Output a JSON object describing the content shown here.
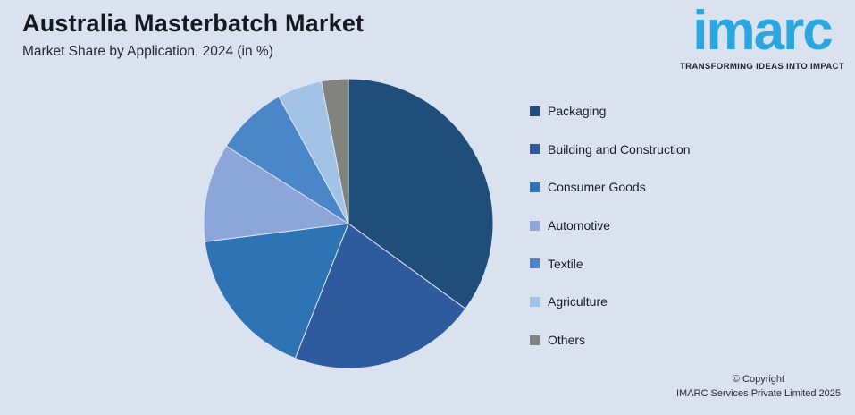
{
  "header": {
    "title": "Australia Masterbatch Market",
    "subtitle": "Market Share by Application, 2024 (in %)"
  },
  "logo": {
    "brand": "imarc",
    "tagline": "TRANSFORMING IDEAS INTO IMPACT",
    "brand_color": "#2aa7e0",
    "tagline_color": "#1d2331"
  },
  "footer": {
    "copyright_line1": "© Copyright",
    "copyright_line2": "IMARC Services Private Limited 2025"
  },
  "palette": {
    "background": "#dbe2ef",
    "slice_border": "#dde4f1"
  },
  "chart_data": {
    "type": "pie",
    "title": "Australia Masterbatch Market",
    "subtitle": "Market Share by Application, 2024 (in %)",
    "unit": "%",
    "start_angle_deg": 0,
    "direction": "clockwise",
    "legend_position": "right",
    "slice_value_labels_shown": false,
    "values_estimated_from_angles": true,
    "series": [
      {
        "name": "Packaging",
        "value": 35,
        "color": "#1f4e7b"
      },
      {
        "name": "Building and Construction",
        "value": 21,
        "color": "#2e5b9e"
      },
      {
        "name": "Consumer Goods",
        "value": 17,
        "color": "#2e74b5"
      },
      {
        "name": "Automotive",
        "value": 11,
        "color": "#8da6da"
      },
      {
        "name": "Textile",
        "value": 8,
        "color": "#4b86c8"
      },
      {
        "name": "Agriculture",
        "value": 5,
        "color": "#a2c3e6"
      },
      {
        "name": "Others",
        "value": 3,
        "color": "#82827e"
      }
    ]
  }
}
